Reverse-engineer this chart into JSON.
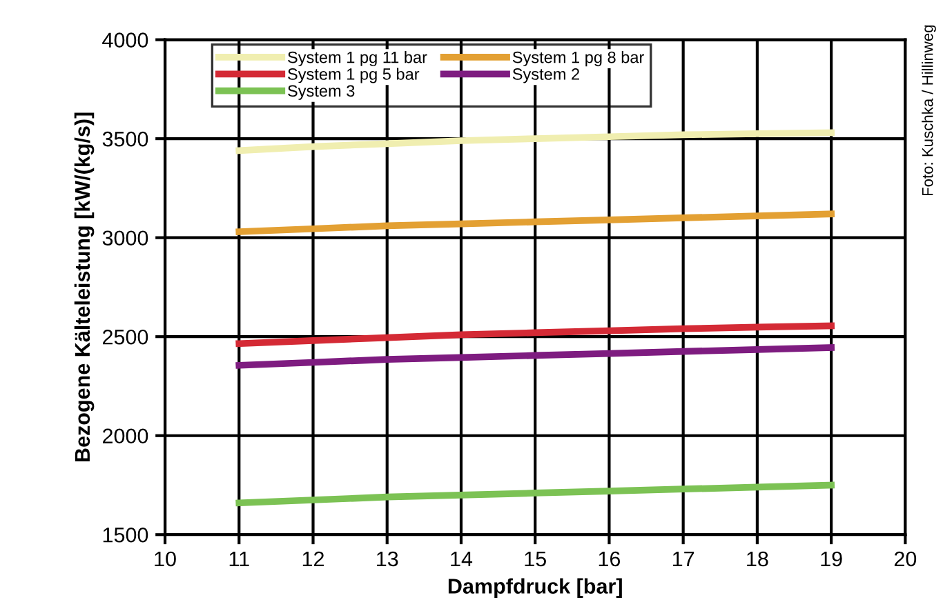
{
  "chart_data": {
    "type": "line",
    "xlabel": "Dampfdruck [bar]",
    "ylabel": "Bezogene Kälteleistung [kW/(kg/s)]",
    "x": [
      11,
      12,
      13,
      14,
      15,
      16,
      17,
      18,
      19
    ],
    "series": [
      {
        "name": "System 1 pg 11 bar",
        "color": "#f0eeb0",
        "values": [
          3440,
          3460,
          3475,
          3490,
          3500,
          3510,
          3520,
          3525,
          3530
        ]
      },
      {
        "name": "System 1 pg 8 bar",
        "color": "#e3a033",
        "values": [
          3030,
          3045,
          3060,
          3070,
          3080,
          3090,
          3100,
          3110,
          3120
        ]
      },
      {
        "name": "System 1 pg 5 bar",
        "color": "#d42a35",
        "values": [
          2465,
          2480,
          2495,
          2510,
          2520,
          2530,
          2540,
          2548,
          2555
        ]
      },
      {
        "name": "System 2",
        "color": "#7e1c80",
        "values": [
          2355,
          2370,
          2385,
          2395,
          2405,
          2415,
          2425,
          2435,
          2445
        ]
      },
      {
        "name": "System 3",
        "color": "#7cc254",
        "values": [
          1660,
          1675,
          1690,
          1700,
          1710,
          1720,
          1730,
          1740,
          1750
        ]
      }
    ],
    "xlim": [
      10,
      20
    ],
    "xticks": [
      10,
      11,
      12,
      13,
      14,
      15,
      16,
      17,
      18,
      19,
      20
    ],
    "ylim": [
      1500,
      4000
    ],
    "yticks": [
      1500,
      2000,
      2500,
      3000,
      3500,
      4000
    ],
    "grid": true,
    "legend": "top",
    "marker": "none",
    "line_style": "solid",
    "annotations": [
      "Foto: Kuschka / Hillinweg"
    ]
  }
}
